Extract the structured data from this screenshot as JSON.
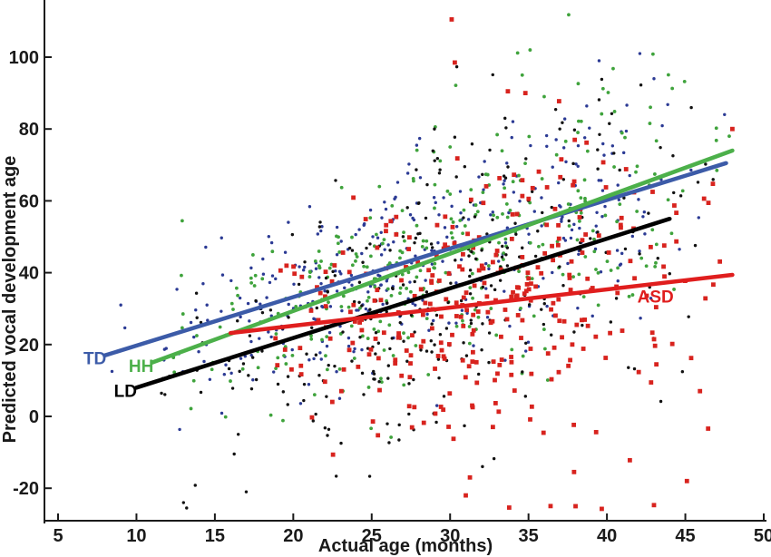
{
  "chart_data": {
    "type": "scatter",
    "title": "",
    "xlabel": "Actual age (months)",
    "ylabel": "Predicted vocal development age",
    "xlim": [
      4.1,
      50.3
    ],
    "ylim": [
      -29,
      116
    ],
    "xticks": [
      5,
      10,
      15,
      20,
      25,
      30,
      35,
      40,
      45,
      50
    ],
    "yticks": [
      -20,
      0,
      20,
      40,
      60,
      80,
      100
    ],
    "grid": false,
    "legend": "inline-line-labels",
    "axis_color": "#1a1a1a",
    "background_color": "#ffffff",
    "series": [
      {
        "name": "TD",
        "label": "TD",
        "line_color": "#3c5ba8",
        "dot_color": "#2b3a94",
        "marker": "dot",
        "marker_size": 3.4,
        "regression_line": {
          "x1": 8.0,
          "y1": 17.0,
          "x2": 47.6,
          "y2": 70.5
        },
        "label_pos": {
          "x": 7.35,
          "y": 16.0
        },
        "scatter": {
          "count": 360,
          "seed": 101,
          "xmin": 7.5,
          "xmax": 48.5,
          "sd0": 12,
          "sd_slope": 0.12,
          "neg_skew": 1.0
        },
        "extra_points": [
          [
            42.1,
            101
          ],
          [
            43.0,
            94
          ],
          [
            39.5,
            99
          ],
          [
            47.5,
            84
          ],
          [
            9.0,
            31
          ]
        ]
      },
      {
        "name": "HH",
        "label": "HH",
        "line_color": "#4cb04a",
        "dot_color": "#3fa33c",
        "marker": "dot",
        "marker_size": 3.8,
        "regression_line": {
          "x1": 11.0,
          "y1": 15.0,
          "x2": 48.0,
          "y2": 74.0
        },
        "label_pos": {
          "x": 10.3,
          "y": 13.9
        },
        "scatter": {
          "count": 340,
          "seed": 202,
          "xmin": 10.5,
          "xmax": 48.5,
          "sd0": 13,
          "sd_slope": 0.12,
          "neg_skew": 1.0
        },
        "extra_points": [
          [
            35.1,
            102
          ],
          [
            34.6,
            95
          ],
          [
            36.0,
            89
          ],
          [
            30.0,
            75
          ],
          [
            47.8,
            78
          ]
        ]
      },
      {
        "name": "LD",
        "label": "LD",
        "line_color": "#000000",
        "dot_color": "#111111",
        "marker": "dot",
        "marker_size": 3.4,
        "regression_line": {
          "x1": 10.0,
          "y1": 8.0,
          "x2": 44.0,
          "y2": 55.0
        },
        "label_pos": {
          "x": 9.3,
          "y": 6.9
        },
        "scatter": {
          "count": 310,
          "seed": 303,
          "xmin": 10.0,
          "xmax": 48.0,
          "sd0": 15,
          "sd_slope": 0.15,
          "neg_skew": 1.1
        },
        "extra_points": [
          [
            13.0,
            -24
          ],
          [
            17.0,
            -21
          ],
          [
            33.5,
            83
          ],
          [
            29.0,
            80
          ],
          [
            13.2,
            -25.5
          ]
        ]
      },
      {
        "name": "ASD",
        "label": "ASD",
        "line_color": "#e01e1e",
        "dot_color": "#d8231e",
        "marker": "square",
        "marker_size": 4.8,
        "regression_line": {
          "x1": 16.0,
          "y1": 23.2,
          "x2": 48.0,
          "y2": 39.4
        },
        "label_pos": {
          "x": 43.1,
          "y": 33.2
        },
        "scatter": {
          "count": 330,
          "seed": 404,
          "xmin": 17.0,
          "xmax": 48.5,
          "sd0": 11,
          "sd_slope": 0.52,
          "neg_skew": 1.15
        },
        "extra_points": [
          [
            30.1,
            110.5
          ],
          [
            30.3,
            98.5
          ],
          [
            34.8,
            90
          ],
          [
            43.0,
            -24.7
          ],
          [
            45.1,
            -18
          ],
          [
            31.0,
            -22
          ],
          [
            38.0,
            -25
          ],
          [
            48.0,
            80
          ],
          [
            27.5,
            17
          ]
        ]
      }
    ]
  }
}
